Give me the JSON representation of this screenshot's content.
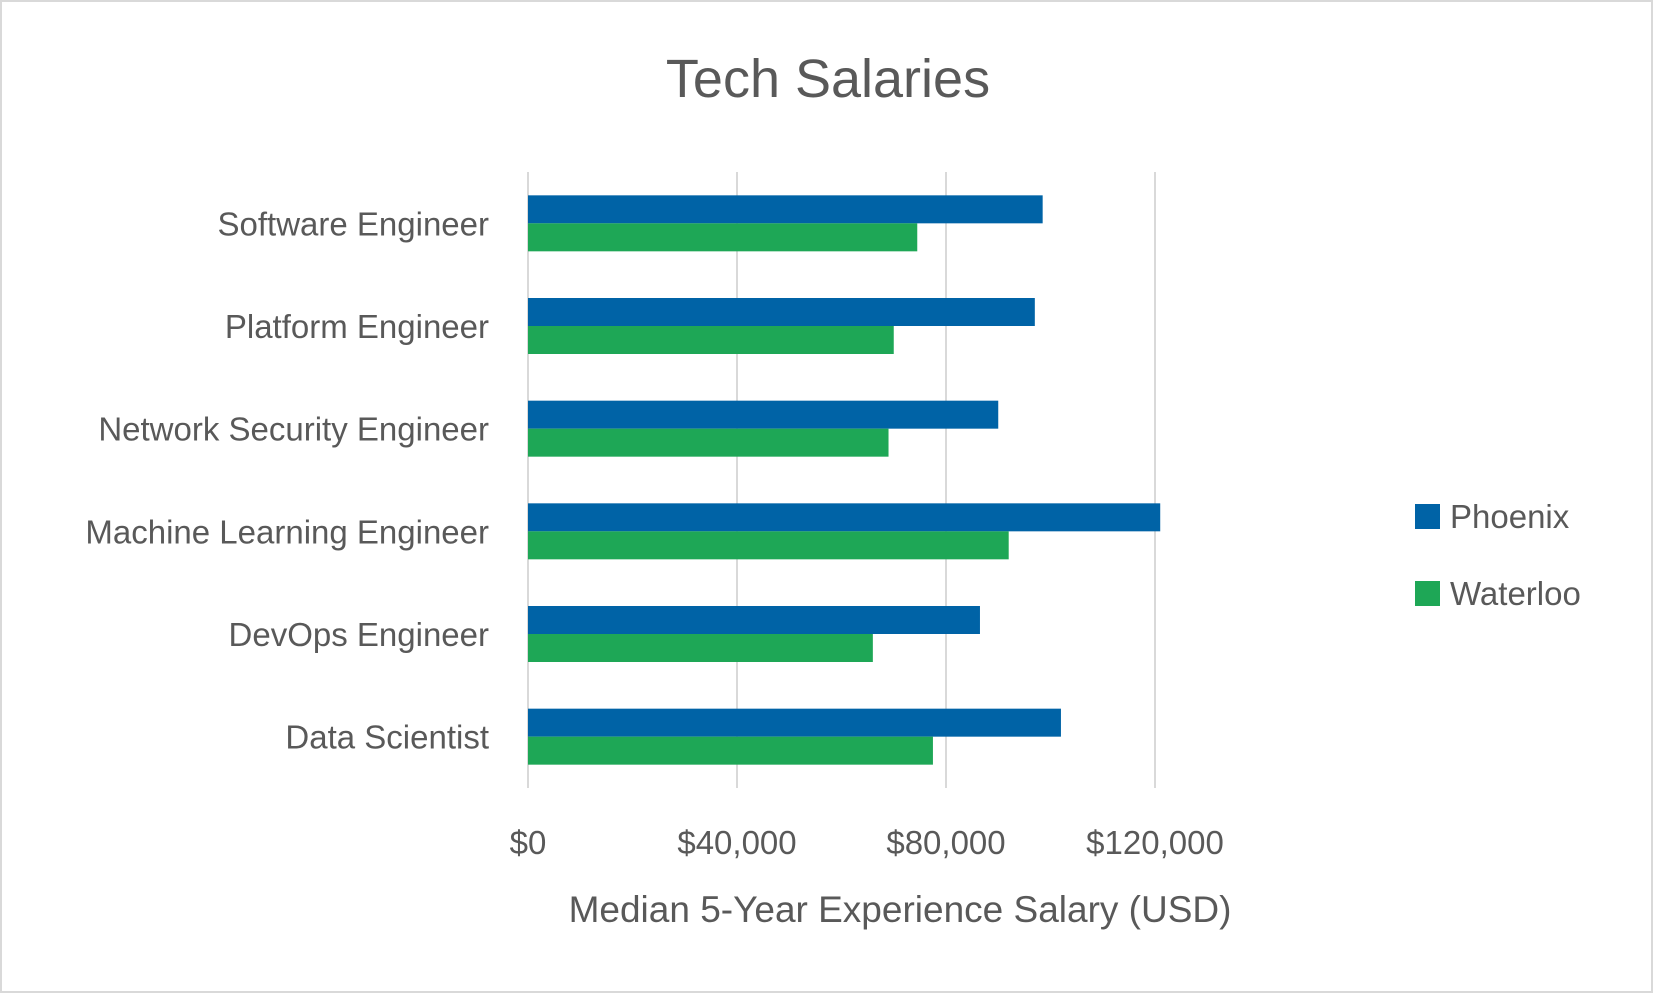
{
  "chart_data": {
    "type": "bar",
    "orientation": "horizontal",
    "title": "Tech Salaries",
    "xlabel": "Median 5-Year Experience Salary (USD)",
    "ylabel": "",
    "categories": [
      "Data Scientist",
      "DevOps Engineer",
      "Machine Learning Engineer",
      "Network Security Engineer",
      "Platform Engineer",
      "Software Engineer"
    ],
    "series": [
      {
        "name": "Phoenix",
        "color": "#0063a6",
        "values": [
          102000,
          86500,
          121000,
          90000,
          97000,
          98500
        ]
      },
      {
        "name": "Waterloo",
        "color": "#1ea756",
        "values": [
          77500,
          66000,
          92000,
          69000,
          70000,
          74500
        ]
      }
    ],
    "xlim": [
      0,
      120000
    ],
    "xticks": [
      0,
      40000,
      80000,
      120000
    ],
    "xtick_labels": [
      "$0",
      "$40,000",
      "$80,000",
      "$120,000"
    ],
    "grid": true,
    "legend_position": "right"
  }
}
